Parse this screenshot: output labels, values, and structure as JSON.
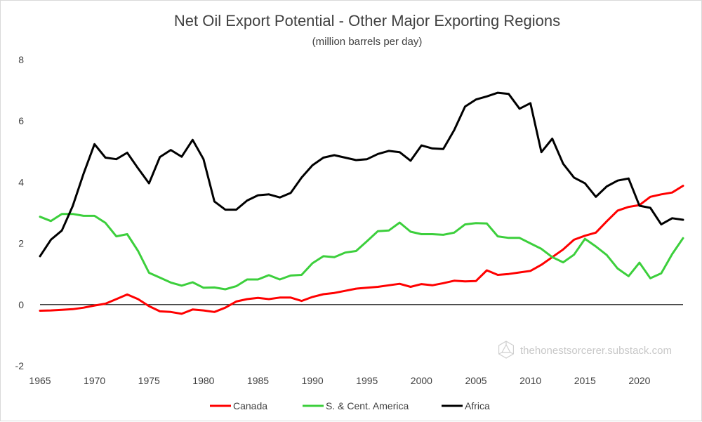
{
  "chart_data": {
    "type": "line",
    "title": "Net Oil Export Potential - Other Major Exporting Regions",
    "subtitle": "(million barrels per day)",
    "xlabel": "",
    "ylabel": "",
    "xlim": [
      1965,
      2024
    ],
    "ylim": [
      -2,
      8
    ],
    "y_ticks": [
      -2,
      0,
      2,
      4,
      6,
      8
    ],
    "x_ticks": [
      1965,
      1970,
      1975,
      1980,
      1985,
      1990,
      1995,
      2000,
      2005,
      2010,
      2015,
      2020
    ],
    "grid": false,
    "legend_position": "bottom",
    "x": [
      1965,
      1966,
      1967,
      1968,
      1969,
      1970,
      1971,
      1972,
      1973,
      1974,
      1975,
      1976,
      1977,
      1978,
      1979,
      1980,
      1981,
      1982,
      1983,
      1984,
      1985,
      1986,
      1987,
      1988,
      1989,
      1990,
      1991,
      1992,
      1993,
      1994,
      1995,
      1996,
      1997,
      1998,
      1999,
      2000,
      2001,
      2002,
      2003,
      2004,
      2005,
      2006,
      2007,
      2008,
      2009,
      2010,
      2011,
      2012,
      2013,
      2014,
      2015,
      2016,
      2017,
      2018,
      2019,
      2020,
      2021,
      2022,
      2023,
      2024
    ],
    "series": [
      {
        "name": "Canada",
        "color": "#ff0000",
        "values": [
          -0.2,
          -0.19,
          -0.17,
          -0.15,
          -0.1,
          -0.03,
          0.03,
          0.18,
          0.33,
          0.18,
          -0.05,
          -0.22,
          -0.24,
          -0.3,
          -0.16,
          -0.19,
          -0.24,
          -0.1,
          0.1,
          0.18,
          0.22,
          0.18,
          0.23,
          0.23,
          0.12,
          0.25,
          0.34,
          0.38,
          0.45,
          0.52,
          0.55,
          0.58,
          0.63,
          0.68,
          0.58,
          0.67,
          0.63,
          0.7,
          0.78,
          0.76,
          0.77,
          1.12,
          0.97,
          1.0,
          1.05,
          1.1,
          1.3,
          1.55,
          1.8,
          2.12,
          2.25,
          2.35,
          2.72,
          3.07,
          3.19,
          3.25,
          3.52,
          3.6,
          3.66,
          3.88
        ]
      },
      {
        "name": "S. & Cent. America",
        "color": "#3ccf3c",
        "values": [
          2.87,
          2.73,
          2.96,
          2.96,
          2.9,
          2.9,
          2.67,
          2.23,
          2.3,
          1.75,
          1.04,
          0.88,
          0.72,
          0.62,
          0.73,
          0.55,
          0.56,
          0.5,
          0.6,
          0.82,
          0.82,
          0.96,
          0.82,
          0.95,
          0.97,
          1.35,
          1.58,
          1.55,
          1.7,
          1.75,
          2.07,
          2.4,
          2.42,
          2.68,
          2.38,
          2.3,
          2.3,
          2.28,
          2.35,
          2.62,
          2.66,
          2.65,
          2.23,
          2.18,
          2.18,
          2.0,
          1.82,
          1.55,
          1.38,
          1.63,
          2.15,
          1.9,
          1.62,
          1.18,
          0.93,
          1.37,
          0.86,
          1.02,
          1.65,
          2.17
        ]
      },
      {
        "name": "Africa",
        "color": "#000000",
        "values": [
          1.58,
          2.12,
          2.42,
          3.22,
          4.28,
          5.24,
          4.8,
          4.75,
          4.96,
          4.45,
          3.96,
          4.82,
          5.05,
          4.83,
          5.38,
          4.75,
          3.37,
          3.1,
          3.1,
          3.4,
          3.57,
          3.6,
          3.5,
          3.65,
          4.15,
          4.55,
          4.8,
          4.88,
          4.8,
          4.72,
          4.75,
          4.92,
          5.02,
          4.98,
          4.7,
          5.2,
          5.1,
          5.08,
          5.7,
          6.47,
          6.7,
          6.8,
          6.92,
          6.88,
          6.4,
          6.58,
          4.98,
          5.42,
          4.6,
          4.15,
          3.96,
          3.52,
          3.86,
          4.05,
          4.12,
          3.23,
          3.16,
          2.62,
          2.82,
          2.77
        ]
      }
    ]
  },
  "watermark": {
    "text": "thehonestsorcerer.substack.com",
    "icon": "d20-icon"
  }
}
